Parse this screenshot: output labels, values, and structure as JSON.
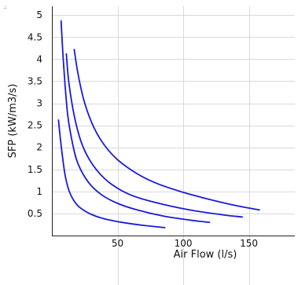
{
  "corner_mark": ".:",
  "chart_data": {
    "type": "line",
    "title": "",
    "xlabel": "Air Flow (l/s)",
    "ylabel": "SFP (kW/m3/s)",
    "xlim": [
      0,
      185
    ],
    "ylim": [
      0,
      5.2
    ],
    "x_ticks": [
      50,
      100,
      150
    ],
    "y_ticks": [
      0.5,
      1,
      1.5,
      2,
      2.5,
      3,
      3.5,
      4,
      4.5,
      5
    ],
    "x_tick_labels": [
      "50",
      "100",
      "150"
    ],
    "y_tick_labels": [
      "0.5",
      "1",
      "1.5",
      "2",
      "2.5",
      "3",
      "3.5",
      "4",
      "4.5",
      "5"
    ],
    "grid": true,
    "line_color": "#1a1adb",
    "series": [
      {
        "x": [
          5,
          7,
          10,
          13,
          17,
          22,
          30,
          40,
          55,
          70,
          86
        ],
        "y": [
          2.62,
          2.05,
          1.38,
          1.02,
          0.78,
          0.62,
          0.48,
          0.38,
          0.29,
          0.23,
          0.18
        ]
      },
      {
        "x": [
          7,
          9,
          12,
          16,
          20,
          28,
          38,
          50,
          65,
          85,
          105,
          120
        ],
        "y": [
          4.87,
          3.85,
          2.75,
          2.05,
          1.62,
          1.2,
          0.92,
          0.73,
          0.58,
          0.44,
          0.35,
          0.3
        ]
      },
      {
        "x": [
          11,
          13,
          17,
          22,
          28,
          36,
          46,
          60,
          80,
          105,
          130,
          145
        ],
        "y": [
          4.12,
          3.45,
          2.72,
          2.15,
          1.75,
          1.42,
          1.15,
          0.92,
          0.74,
          0.58,
          0.47,
          0.42
        ]
      },
      {
        "x": [
          17,
          20,
          25,
          32,
          40,
          50,
          65,
          80,
          100,
          120,
          140,
          158
        ],
        "y": [
          4.22,
          3.65,
          3.0,
          2.45,
          2.05,
          1.72,
          1.4,
          1.18,
          0.98,
          0.82,
          0.68,
          0.58
        ]
      }
    ]
  }
}
